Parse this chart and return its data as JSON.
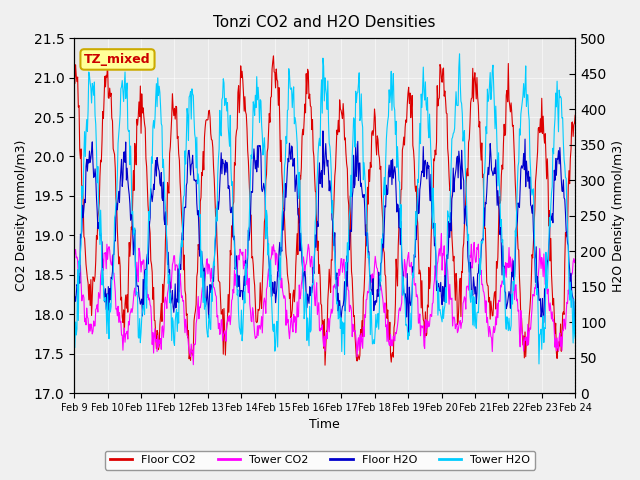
{
  "title": "Tonzi CO2 and H2O Densities",
  "xlabel": "Time",
  "ylabel_left": "CO2 Density (mmol/m3)",
  "ylabel_right": "H2O Density (mmol/m3)",
  "ylim_left": [
    17.0,
    21.5
  ],
  "ylim_right": [
    0,
    500
  ],
  "yticks_left": [
    17.0,
    17.5,
    18.0,
    18.5,
    19.0,
    19.5,
    20.0,
    20.5,
    21.0,
    21.5
  ],
  "yticks_right": [
    0,
    50,
    100,
    150,
    200,
    250,
    300,
    350,
    400,
    450,
    500
  ],
  "xtick_labels": [
    "Feb 9",
    "Feb 10",
    "Feb 11",
    "Feb 12",
    "Feb 13",
    "Feb 14",
    "Feb 15",
    "Feb 16",
    "Feb 17",
    "Feb 18",
    "Feb 19",
    "Feb 20",
    "Feb 21",
    "Feb 22",
    "Feb 23",
    "Feb 24"
  ],
  "n_days": 15,
  "pts_per_day": 48,
  "background_color": "#f0f0f0",
  "plot_bg_color": "#e8e8e8",
  "colors": {
    "floor_co2": "#dd0000",
    "tower_co2": "#ff00ff",
    "floor_h2o": "#0000cc",
    "tower_h2o": "#00ccff"
  },
  "legend_labels": [
    "Floor CO2",
    "Tower CO2",
    "Floor H2O",
    "Tower H2O"
  ],
  "annotation_text": "TZ_mixed",
  "annotation_color": "#cc0000",
  "annotation_bg": "#ffff99",
  "annotation_border": "#ccaa00"
}
